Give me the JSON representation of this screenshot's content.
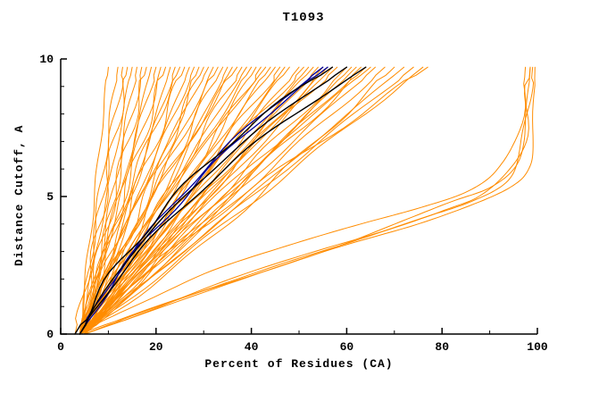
{
  "title": "T1093",
  "chart_data": {
    "type": "line",
    "title": "T1093",
    "xlabel": "Percent of Residues (CA)",
    "ylabel": "Distance Cutoff, A",
    "xlim": [
      0,
      100
    ],
    "ylim": [
      0,
      10
    ],
    "xticks": [
      0,
      20,
      40,
      60,
      80,
      100
    ],
    "xminor": [
      10,
      30,
      50,
      70,
      90
    ],
    "yticks": [
      0,
      5,
      10
    ],
    "yminor": [
      1,
      2,
      3,
      4,
      6,
      7,
      8,
      9
    ],
    "legend": "none",
    "grid": false,
    "colors": {
      "orange": "#ff8c00",
      "blue": "#000099",
      "black": "#000000"
    },
    "ygrid": [
      0,
      2.5,
      5,
      7.5,
      9.7
    ],
    "series": [
      {
        "c": "orange",
        "x": [
          4,
          5.5,
          7.1,
          8.6,
          10
        ]
      },
      {
        "c": "orange",
        "x": [
          4,
          6.1,
          8.1,
          10.2,
          12
        ]
      },
      {
        "c": "orange",
        "x": [
          3,
          6.2,
          8.7,
          11,
          13
        ]
      },
      {
        "c": "orange",
        "x": [
          4,
          6.6,
          9.2,
          11.7,
          14
        ]
      },
      {
        "c": "orange",
        "x": [
          4,
          6.8,
          9.7,
          12.5,
          15
        ]
      },
      {
        "c": "orange",
        "x": [
          4,
          7.8,
          10.8,
          13.6,
          16
        ]
      },
      {
        "c": "orange",
        "x": [
          5,
          8.1,
          11.2,
          14.3,
          17
        ]
      },
      {
        "c": "orange",
        "x": [
          4,
          7.6,
          11.2,
          14.8,
          18
        ]
      },
      {
        "c": "orange",
        "x": [
          4,
          8.7,
          12.6,
          16,
          19
        ]
      },
      {
        "c": "orange",
        "x": [
          4,
          8.1,
          12.2,
          16.4,
          20
        ]
      },
      {
        "c": "orange",
        "x": [
          5,
          9.1,
          13.2,
          17.4,
          21
        ]
      },
      {
        "c": "orange",
        "x": [
          4,
          8.6,
          13.3,
          17.9,
          22
        ]
      },
      {
        "c": "orange",
        "x": [
          4,
          10,
          14.8,
          19.3,
          23
        ]
      },
      {
        "c": "orange",
        "x": [
          5,
          9.9,
          14.8,
          19.7,
          24
        ]
      },
      {
        "c": "orange",
        "x": [
          4,
          8.4,
          13.8,
          19.6,
          25
        ]
      },
      {
        "c": "orange",
        "x": [
          4,
          9.7,
          15.3,
          21,
          26
        ]
      },
      {
        "c": "orange",
        "x": [
          5,
          10.7,
          16.3,
          22,
          27
        ]
      },
      {
        "c": "orange",
        "x": [
          4,
          10.2,
          16.4,
          22.6,
          28
        ]
      },
      {
        "c": "orange",
        "x": [
          4,
          11.9,
          18.3,
          24.1,
          29
        ]
      },
      {
        "c": "orange",
        "x": [
          5,
          11.4,
          17.9,
          24.3,
          30
        ]
      },
      {
        "c": "orange",
        "x": [
          4,
          9.7,
          16.6,
          24.1,
          31
        ]
      },
      {
        "c": "orange",
        "x": [
          5,
          12,
          18.9,
          25.9,
          32
        ]
      },
      {
        "c": "orange",
        "x": [
          4,
          11.5,
          18.9,
          26.4,
          33
        ]
      },
      {
        "c": "orange",
        "x": [
          5,
          12.5,
          19.9,
          27.4,
          34
        ]
      },
      {
        "c": "orange",
        "x": [
          4,
          13.8,
          21.8,
          28.7,
          35
        ]
      },
      {
        "c": "orange",
        "x": [
          5,
          13,
          21,
          29,
          36
        ]
      },
      {
        "c": "orange",
        "x": [
          4,
          11,
          19.4,
          28.6,
          37
        ]
      },
      {
        "c": "orange",
        "x": [
          5,
          13.5,
          22,
          30.5,
          38
        ]
      },
      {
        "c": "orange",
        "x": [
          4,
          13,
          22,
          31,
          39
        ]
      },
      {
        "c": "orange",
        "x": [
          5,
          14,
          23,
          32,
          40
        ]
      },
      {
        "c": "orange",
        "x": [
          4,
          15.7,
          25,
          33.6,
          41
        ]
      },
      {
        "c": "orange",
        "x": [
          5,
          14.5,
          24.1,
          33.6,
          42
        ]
      },
      {
        "c": "orange",
        "x": [
          4,
          12.2,
          22.2,
          33,
          43
        ]
      },
      {
        "c": "orange",
        "x": [
          5,
          15.1,
          25.1,
          35.1,
          44
        ]
      },
      {
        "c": "orange",
        "x": [
          4,
          14.6,
          25.1,
          35.7,
          45
        ]
      },
      {
        "c": "orange",
        "x": [
          5,
          15.6,
          26.1,
          36.7,
          46
        ]
      },
      {
        "c": "orange",
        "x": [
          4,
          16.5,
          27.2,
          37.8,
          47
        ]
      },
      {
        "c": "orange",
        "x": [
          5,
          16.1,
          27.2,
          38.2,
          48
        ]
      },
      {
        "c": "orange",
        "x": [
          5,
          16.6,
          28.2,
          39.8,
          50
        ]
      },
      {
        "c": "orange",
        "x": [
          4,
          13.9,
          25.9,
          39,
          51
        ]
      },
      {
        "c": "orange",
        "x": [
          5,
          17.1,
          29.2,
          41.3,
          52
        ]
      },
      {
        "c": "orange",
        "x": [
          4,
          18.4,
          29.9,
          41.9,
          53
        ]
      },
      {
        "c": "orange",
        "x": [
          5,
          17.6,
          30.3,
          42.9,
          54
        ]
      },
      {
        "c": "orange",
        "x": [
          5,
          17.9,
          30.8,
          43.7,
          55
        ]
      },
      {
        "c": "orange",
        "x": [
          4,
          17.4,
          30.8,
          44.2,
          56
        ]
      },
      {
        "c": "orange",
        "x": [
          5,
          18.4,
          31.8,
          45.2,
          57
        ]
      },
      {
        "c": "orange",
        "x": [
          4,
          15.4,
          28.9,
          44.2,
          58
        ]
      },
      {
        "c": "orange",
        "x": [
          5,
          19.2,
          33.3,
          47.5,
          60
        ]
      },
      {
        "c": "orange",
        "x": [
          4,
          21.9,
          35.5,
          48.9,
          61
        ]
      },
      {
        "c": "orange",
        "x": [
          5,
          19.7,
          34.4,
          49.1,
          62
        ]
      },
      {
        "c": "orange",
        "x": [
          4,
          19.2,
          34.4,
          49.6,
          63
        ]
      },
      {
        "c": "orange",
        "x": [
          5,
          20.2,
          35.4,
          50.6,
          64
        ]
      },
      {
        "c": "orange",
        "x": [
          5,
          17.6,
          32.3,
          49.6,
          65
        ]
      },
      {
        "c": "orange",
        "x": [
          4,
          20,
          36,
          51.9,
          66
        ]
      },
      {
        "c": "orange",
        "x": [
          5,
          21.2,
          37.5,
          53.7,
          68
        ]
      },
      {
        "c": "orange",
        "x": [
          4,
          24.8,
          41.1,
          56.5,
          70
        ]
      },
      {
        "c": "orange",
        "x": [
          5,
          22.3,
          39.5,
          56.8,
          72
        ]
      },
      {
        "c": "orange",
        "x": [
          4,
          22,
          40.1,
          58.1,
          74
        ]
      },
      {
        "c": "orange",
        "x": [
          5,
          23.3,
          41.6,
          59.9,
          76
        ]
      },
      {
        "c": "orange",
        "x": [
          4,
          19.4,
          38,
          58.6,
          77
        ]
      },
      {
        "c": "orange",
        "pts": [
          [
            4,
            0
          ],
          [
            20,
            1
          ],
          [
            38,
            2
          ],
          [
            55,
            3
          ],
          [
            70,
            4
          ],
          [
            82,
            4.8
          ],
          [
            90,
            5.3
          ],
          [
            95,
            6
          ],
          [
            97,
            7
          ],
          [
            98,
            8.5
          ],
          [
            98.5,
            9.7
          ]
        ]
      },
      {
        "c": "orange",
        "pts": [
          [
            5,
            0
          ],
          [
            24,
            1.2
          ],
          [
            45,
            2.5
          ],
          [
            62,
            3.4
          ],
          [
            76,
            4.2
          ],
          [
            86,
            4.8
          ],
          [
            93,
            5.5
          ],
          [
            96,
            6.5
          ],
          [
            98,
            8
          ],
          [
            99,
            9.7
          ]
        ]
      },
      {
        "c": "orange",
        "pts": [
          [
            4,
            0
          ],
          [
            15,
            1
          ],
          [
            30,
            2.2
          ],
          [
            48,
            3.2
          ],
          [
            63,
            4
          ],
          [
            75,
            4.6
          ],
          [
            85,
            5.2
          ],
          [
            92,
            6
          ],
          [
            96,
            7.2
          ],
          [
            97.5,
            9.7
          ]
        ]
      },
      {
        "c": "orange",
        "pts": [
          [
            5,
            0
          ],
          [
            28,
            1.5
          ],
          [
            50,
            2.8
          ],
          [
            68,
            3.8
          ],
          [
            80,
            4.5
          ],
          [
            88,
            5
          ],
          [
            94,
            5.8
          ],
          [
            97,
            7
          ],
          [
            98.5,
            9.7
          ]
        ]
      },
      {
        "c": "orange",
        "pts": [
          [
            5,
            0
          ],
          [
            30,
            1.5
          ],
          [
            55,
            3
          ],
          [
            75,
            4
          ],
          [
            88,
            4.8
          ],
          [
            95,
            5.4
          ],
          [
            98,
            6
          ],
          [
            99,
            7
          ],
          [
            99.5,
            9.7
          ]
        ]
      },
      {
        "c": "blue",
        "x": [
          4,
          13,
          25,
          39,
          55
        ]
      },
      {
        "c": "blue",
        "x": [
          4,
          13.5,
          26,
          40,
          56
        ]
      },
      {
        "c": "black",
        "x": [
          3,
          12,
          24,
          39,
          57
        ]
      },
      {
        "c": "black",
        "x": [
          4,
          13,
          26,
          42,
          60
        ]
      },
      {
        "c": "black",
        "x": [
          4,
          14,
          28,
          45,
          64
        ]
      }
    ]
  }
}
